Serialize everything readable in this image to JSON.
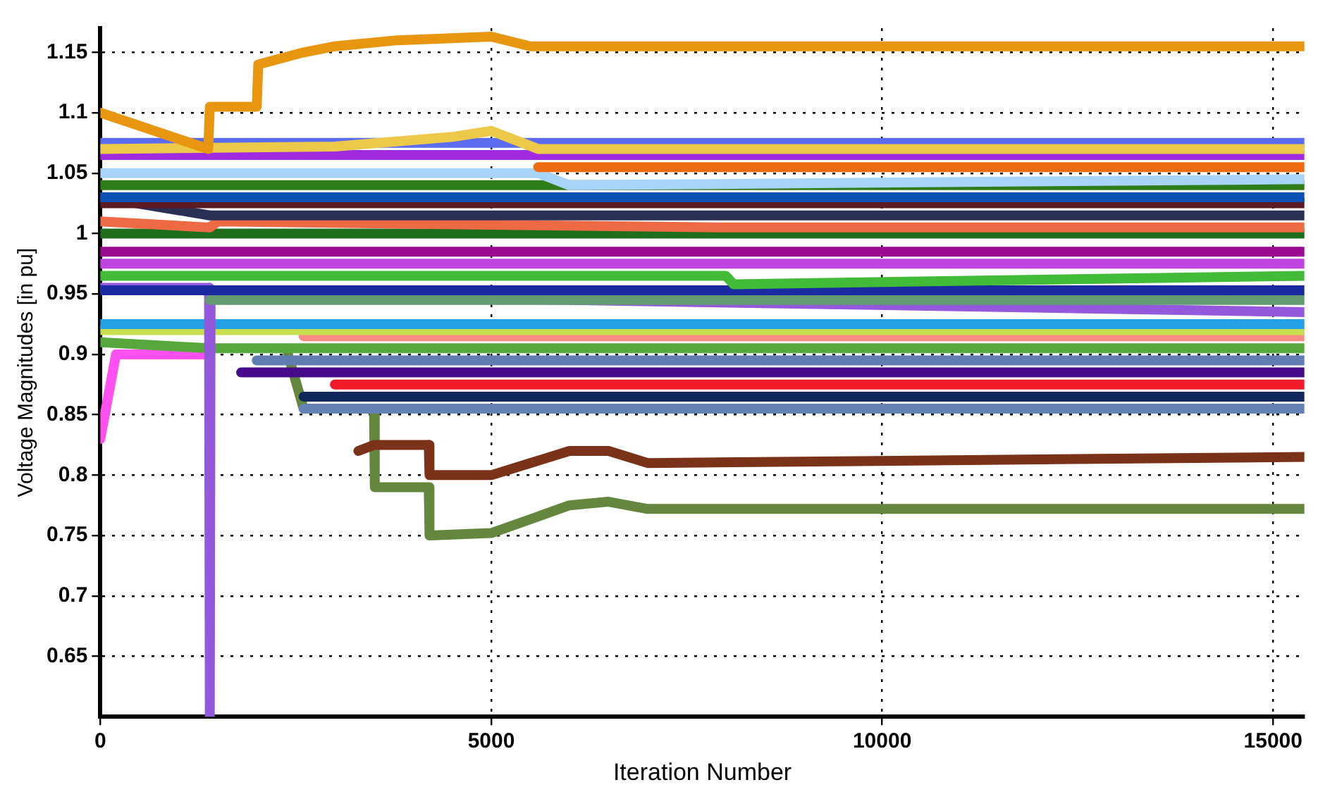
{
  "chart_data": {
    "type": "line",
    "xlabel": "Iteration Number",
    "ylabel": "Voltage Magnitudes [in pu]",
    "xlim": [
      0,
      15400
    ],
    "ylim": [
      0.6,
      1.17
    ],
    "xticks": [
      0,
      5000,
      10000,
      15000
    ],
    "yticks": [
      0.65,
      0.7,
      0.75,
      0.8,
      0.85,
      0.9,
      0.95,
      1,
      1.05,
      1.1,
      1.15
    ],
    "grid": true,
    "legend": false,
    "line_style": "solid",
    "series": [
      {
        "color": "#e8960f",
        "x": [
          0,
          1380,
          1400,
          2000,
          2020,
          2600,
          3000,
          3800,
          5000,
          5500,
          15400
        ],
        "values": [
          1.1,
          1.07,
          1.105,
          1.105,
          1.14,
          1.15,
          1.155,
          1.16,
          1.163,
          1.155,
          1.155
        ]
      },
      {
        "color": "#edc94a",
        "x": [
          0,
          3000,
          4500,
          5000,
          5600,
          15400
        ],
        "values": [
          1.07,
          1.072,
          1.08,
          1.085,
          1.07,
          1.07
        ]
      },
      {
        "color": "#5b6cf0",
        "x": [
          0,
          5600,
          15400
        ],
        "values": [
          1.075,
          1.075,
          1.075
        ]
      },
      {
        "color": "#a02ae0",
        "x": [
          0,
          15400
        ],
        "values": [
          1.065,
          1.065
        ]
      },
      {
        "color": "#ee6a0e",
        "x": [
          5600,
          15400
        ],
        "values": [
          1.055,
          1.055
        ]
      },
      {
        "color": "#a8d4fa",
        "x": [
          0,
          5600,
          6000,
          15400
        ],
        "values": [
          1.05,
          1.05,
          1.04,
          1.045
        ]
      },
      {
        "color": "#2e7d1a",
        "x": [
          0,
          5600,
          15400
        ],
        "values": [
          1.04,
          1.04,
          1.04
        ]
      },
      {
        "color": "#0a52b5",
        "x": [
          0,
          15400
        ],
        "values": [
          1.03,
          1.03
        ]
      },
      {
        "color": "#5e1a22",
        "x": [
          0,
          15400
        ],
        "values": [
          1.025,
          1.025
        ]
      },
      {
        "color": "#2a2f55",
        "x": [
          0,
          1400,
          15400
        ],
        "values": [
          1.03,
          1.015,
          1.015
        ]
      },
      {
        "color": "#ee6a44",
        "x": [
          0,
          1400,
          1500,
          8000,
          15400
        ],
        "values": [
          1.01,
          1.005,
          1.01,
          1.005,
          1.005
        ]
      },
      {
        "color": "#1e6e1e",
        "x": [
          0,
          15400
        ],
        "values": [
          1,
          1
        ]
      },
      {
        "color": "#9a0a90",
        "x": [
          0,
          15400
        ],
        "values": [
          0.985,
          0.985
        ]
      },
      {
        "color": "#c045e0",
        "x": [
          0,
          15400
        ],
        "values": [
          0.975,
          0.975
        ]
      },
      {
        "color": "#42bb38",
        "x": [
          0,
          8000,
          8100,
          15400
        ],
        "values": [
          0.965,
          0.965,
          0.958,
          0.965
        ]
      },
      {
        "color": "#1b2aa0",
        "x": [
          0,
          15400
        ],
        "values": [
          0.953,
          0.953
        ]
      },
      {
        "color": "#629a72",
        "x": [
          1400,
          15400
        ],
        "values": [
          0.945,
          0.945
        ]
      },
      {
        "color": "#9458dc",
        "x": [
          0,
          1390,
          1400,
          1410,
          6000,
          15400
        ],
        "values": [
          0.955,
          0.955,
          0.6,
          0.95,
          0.945,
          0.935
        ]
      },
      {
        "color": "#24a0e6",
        "x": [
          0,
          15400
        ],
        "values": [
          0.925,
          0.925
        ]
      },
      {
        "color": "#c8e050",
        "x": [
          0,
          15400
        ],
        "values": [
          0.92,
          0.92
        ]
      },
      {
        "color": "#fa8c84",
        "x": [
          2600,
          15400
        ],
        "values": [
          0.915,
          0.915
        ]
      },
      {
        "color": "#56a83c",
        "x": [
          0,
          1400,
          15400
        ],
        "values": [
          0.91,
          0.905,
          0.905
        ]
      },
      {
        "color": "#ff50f0",
        "x": [
          0,
          200,
          1400
        ],
        "values": [
          0.83,
          0.9,
          0.9
        ]
      },
      {
        "color": "#5f7db0",
        "x": [
          2000,
          15400
        ],
        "values": [
          0.895,
          0.895
        ]
      },
      {
        "color": "#460a8a",
        "x": [
          1800,
          15400
        ],
        "values": [
          0.885,
          0.885
        ]
      },
      {
        "color": "#f01a28",
        "x": [
          3000,
          15400
        ],
        "values": [
          0.875,
          0.875
        ]
      },
      {
        "color": "#10285a",
        "x": [
          2600,
          15400
        ],
        "values": [
          0.865,
          0.865
        ]
      },
      {
        "color": "#6482b4",
        "x": [
          2600,
          15400
        ],
        "values": [
          0.855,
          0.855
        ]
      },
      {
        "color": "#7a3218",
        "x": [
          3300,
          3500,
          3510,
          4200,
          4210,
          5000,
          6000,
          6500,
          7000,
          15400
        ],
        "values": [
          0.82,
          0.825,
          0.825,
          0.825,
          0.8,
          0.8,
          0.82,
          0.82,
          0.81,
          0.815
        ]
      },
      {
        "color": "#64863e",
        "x": [
          2400,
          2600,
          3500,
          3510,
          4200,
          4210,
          5000,
          6000,
          6500,
          7000,
          15400
        ],
        "values": [
          0.9,
          0.855,
          0.855,
          0.79,
          0.79,
          0.75,
          0.752,
          0.775,
          0.778,
          0.772,
          0.772
        ]
      }
    ]
  }
}
